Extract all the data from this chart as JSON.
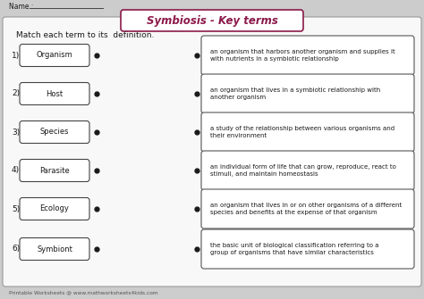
{
  "title": "Symbiosis - Key terms",
  "instruction": "Match each term to its  definition.",
  "name_label": "Name :",
  "footer": "Printable Worksheets @ www.mathworksheets4kids.com",
  "terms": [
    "Organism",
    "Host",
    "Species",
    "Parasite",
    "Ecology",
    "Symbiont"
  ],
  "definitions": [
    "an organism that harbors another organism and supplies it\nwith nutrients in a symbiotic relationship",
    "an organism that lives in a symbiotic relationship with\nanother organism",
    "a study of the relationship between various organisms and\ntheir environment",
    "an individual form of life that can grow, reproduce, react to\nstimuli, and maintain homeostasis",
    "an organism that lives in or on other organisms of a different\nspecies and benefits at the expense of that organism",
    "the basic unit of biological classification referring to a\ngroup of organisms that have similar characteristics"
  ],
  "bg_color": "#cccccc",
  "inner_bg": "#f8f8f8",
  "title_color": "#8b1a4a",
  "title_bg": "#ffffff",
  "title_border": "#8b1a4a",
  "term_box_color": "#ffffff",
  "term_border_color": "#444444",
  "def_box_color": "#ffffff",
  "def_border_color": "#555555",
  "text_color": "#1a1a1a",
  "dot_color": "#1a1a1a",
  "name_line_color": "#444444",
  "footer_color": "#555555"
}
